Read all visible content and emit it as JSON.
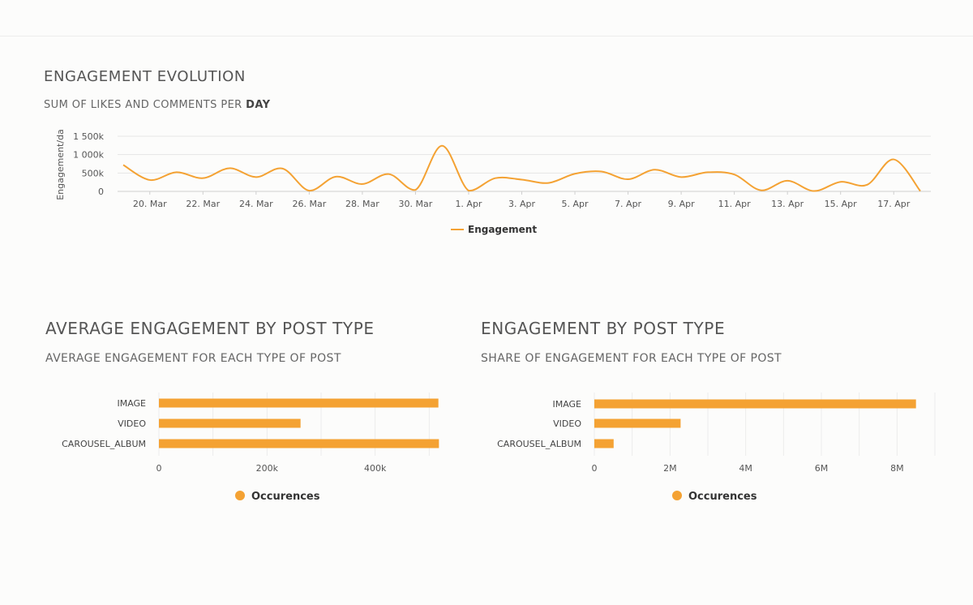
{
  "line_section": {
    "title": "ENGAGEMENT EVOLUTION",
    "subtitle_prefix": "SUM OF LIKES AND COMMENTS PER ",
    "subtitle_emph": "DAY"
  },
  "avg_section": {
    "title": "AVERAGE ENGAGEMENT BY POST TYPE",
    "subtitle": "AVERAGE ENGAGEMENT FOR EACH TYPE OF POST"
  },
  "share_section": {
    "title": "ENGAGEMENT BY POST TYPE",
    "subtitle": "SHARE OF ENGAGEMENT FOR EACH TYPE OF POST"
  },
  "colors": {
    "accent": "#f4a233",
    "grid": "#e6e6e6",
    "axis_text": "#555555"
  },
  "chart_data": [
    {
      "type": "line",
      "title": "ENGAGEMENT EVOLUTION",
      "subtitle": "SUM OF LIKES AND COMMENTS PER DAY",
      "ylabel": "Engagement/da",
      "xlabel": "",
      "ylim": [
        0,
        1500000
      ],
      "y_ticks": [
        0,
        500000,
        1000000,
        1500000
      ],
      "y_tick_labels": [
        "0",
        "500k",
        "1 000k",
        "1 500k"
      ],
      "x_tick_labels": [
        "20. Mar",
        "22. Mar",
        "24. Mar",
        "26. Mar",
        "28. Mar",
        "30. Mar",
        "1. Apr",
        "3. Apr",
        "5. Apr",
        "7. Apr",
        "9. Apr",
        "11. Apr",
        "13. Apr",
        "15. Apr",
        "17. Apr"
      ],
      "x": [
        "19. Mar",
        "20. Mar",
        "21. Mar",
        "22. Mar",
        "23. Mar",
        "24. Mar",
        "25. Mar",
        "26. Mar",
        "27. Mar",
        "28. Mar",
        "29. Mar",
        "30. Mar",
        "31. Mar",
        "1. Apr",
        "2. Apr",
        "3. Apr",
        "4. Apr",
        "5. Apr",
        "6. Apr",
        "7. Apr",
        "8. Apr",
        "9. Apr",
        "10. Apr",
        "11. Apr",
        "12. Apr",
        "13. Apr",
        "14. Apr",
        "15. Apr",
        "16. Apr",
        "17. Apr",
        "18. Apr"
      ],
      "series": [
        {
          "name": "Engagement",
          "values": [
            720000,
            310000,
            520000,
            360000,
            630000,
            390000,
            620000,
            20000,
            400000,
            200000,
            470000,
            40000,
            1240000,
            20000,
            360000,
            320000,
            230000,
            480000,
            540000,
            330000,
            590000,
            390000,
            520000,
            460000,
            30000,
            290000,
            10000,
            260000,
            180000,
            870000,
            10000
          ]
        }
      ],
      "grid": true,
      "legend_position": "bottom-center"
    },
    {
      "type": "bar",
      "orientation": "horizontal",
      "title": "AVERAGE ENGAGEMENT BY POST TYPE",
      "subtitle": "AVERAGE ENGAGEMENT FOR EACH TYPE OF POST",
      "categories": [
        "IMAGE",
        "VIDEO",
        "CAROUSEL_ALBUM"
      ],
      "series": [
        {
          "name": "Occurences",
          "values": [
            517000,
            262000,
            518000
          ]
        }
      ],
      "xlim": [
        0,
        525000
      ],
      "x_ticks": [
        0,
        200000,
        400000
      ],
      "x_tick_labels": [
        "0",
        "200k",
        "400k"
      ],
      "grid": true,
      "legend_position": "bottom-center"
    },
    {
      "type": "bar",
      "orientation": "horizontal",
      "title": "ENGAGEMENT BY POST TYPE",
      "subtitle": "SHARE OF ENGAGEMENT FOR EACH TYPE OF POST",
      "categories": [
        "IMAGE",
        "VIDEO",
        "CAROUSEL_ALBUM"
      ],
      "series": [
        {
          "name": "Occurences",
          "values": [
            8500000,
            2280000,
            510000
          ]
        }
      ],
      "xlim": [
        0,
        9000000
      ],
      "x_ticks": [
        0,
        2000000,
        4000000,
        6000000,
        8000000
      ],
      "x_tick_labels": [
        "0",
        "2M",
        "4M",
        "6M",
        "8M"
      ],
      "grid": true,
      "legend_position": "bottom-center"
    }
  ]
}
